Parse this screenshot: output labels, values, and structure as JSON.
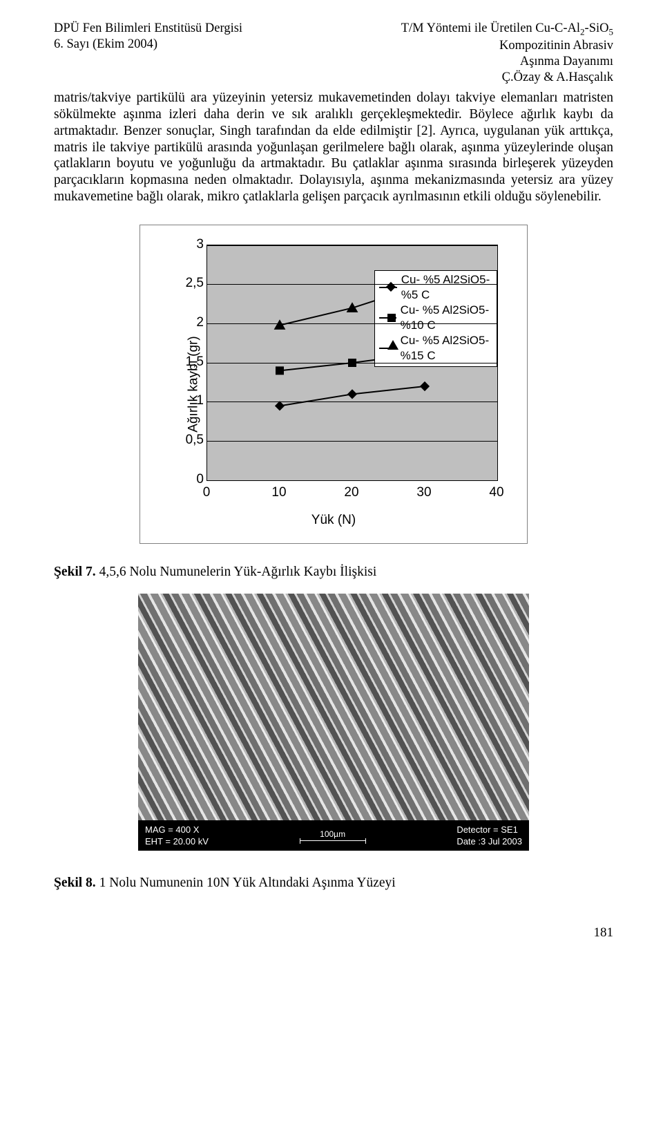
{
  "header": {
    "left_line1": "DPÜ Fen Bilimleri Enstitüsü Dergisi",
    "left_line2": "6. Sayı                         (Ekim 2004)",
    "right_line1": "T/M Yöntemi ile Üretilen Cu-C-Al",
    "right_line1_sub": "2",
    "right_line1_tail": "-SiO",
    "right_line1_sub2": "5",
    "right_line2": "Kompozitinin Abrasiv",
    "right_line3": "Aşınma Dayanımı",
    "right_line4": "Ç.Özay & A.Hasçalık"
  },
  "paragraph": "matris/takviye partikülü ara yüzeyinin  yetersiz mukavemetinden dolayı takviye elemanları matristen sökülmekte aşınma izleri daha derin ve sık aralıklı gerçekleşmektedir. Böylece ağırlık kaybı da artmaktadır. Benzer sonuçlar, Singh tarafından da elde edilmiştir [2]. Ayrıca, uygulanan yük arttıkça, matris ile takviye partikülü arasında yoğunlaşan gerilmelere bağlı olarak, aşınma yüzeylerinde oluşan çatlakların boyutu ve yoğunluğu da artmaktadır. Bu çatlaklar aşınma sırasında birleşerek yüzeyden parçacıkların kopmasına neden olmaktadır. Dolayısıyla, aşınma mekanizmasında yetersiz ara yüzey mukavemetine bağlı olarak, mikro çatlaklarla gelişen parçacık ayrılmasının etkili olduğu söylenebilir.",
  "chart": {
    "type": "line",
    "background_color": "#bfbfbf",
    "border_color": "#808080",
    "grid_color": "#000000",
    "font_family": "Arial",
    "label_fontsize": 19,
    "x_label": "Yük (N)",
    "y_label": "Ağırlık kaybı (gr)",
    "xlim": [
      0,
      40
    ],
    "ylim": [
      0,
      3
    ],
    "x_ticks": [
      0,
      10,
      20,
      30,
      40
    ],
    "y_ticks": [
      0,
      0.5,
      1,
      1.5,
      2,
      2.5,
      3
    ],
    "y_tick_labels": [
      "0",
      "0,5",
      "1",
      "1,5",
      "2",
      "2,5",
      "3"
    ],
    "x_tick_labels": [
      "0",
      "10",
      "20",
      "30",
      "40"
    ],
    "legend": {
      "position": "top-right-inside",
      "background": "#ffffff",
      "border": "#000000",
      "items": [
        {
          "label": "Cu- %5 Al2SiO5- %5 C",
          "marker": "diamond"
        },
        {
          "label": "Cu- %5 Al2SiO5- %10 C",
          "marker": "square"
        },
        {
          "label": "Cu- %5 Al2SiO5- %15 C",
          "marker": "triangle"
        }
      ]
    },
    "series": [
      {
        "name": "Cu- %5 Al2SiO5- %5 C",
        "marker": "diamond",
        "color": "#000000",
        "line_width": 2,
        "marker_size": 10,
        "x": [
          10,
          20,
          30
        ],
        "y": [
          0.95,
          1.1,
          1.2
        ]
      },
      {
        "name": "Cu- %5 Al2SiO5- %10 C",
        "marker": "square",
        "color": "#000000",
        "line_width": 2,
        "marker_size": 12,
        "x": [
          10,
          20,
          30
        ],
        "y": [
          1.4,
          1.5,
          1.62
        ]
      },
      {
        "name": "Cu- %5 Al2SiO5- %15 C",
        "marker": "triangle",
        "color": "#000000",
        "line_width": 2,
        "marker_size": 14,
        "x": [
          10,
          20,
          30
        ],
        "y": [
          1.98,
          2.2,
          2.5
        ]
      }
    ]
  },
  "caption7_bold": "Şekil 7.",
  "caption7_text": " 4,5,6 Nolu Numunelerin Yük-Ağırlık Kaybı İlişkisi",
  "sem": {
    "mag": "MAG =   400 X",
    "eht": "EHT = 20.00 kV",
    "scale_label": "100µm",
    "detector": "Detector = SE1",
    "date": "Date :3 Jul 2003"
  },
  "caption8_bold": "Şekil 8.",
  "caption8_text": " 1 Nolu Numunenin 10N Yük Altındaki Aşınma Yüzeyi",
  "page_number": "181"
}
